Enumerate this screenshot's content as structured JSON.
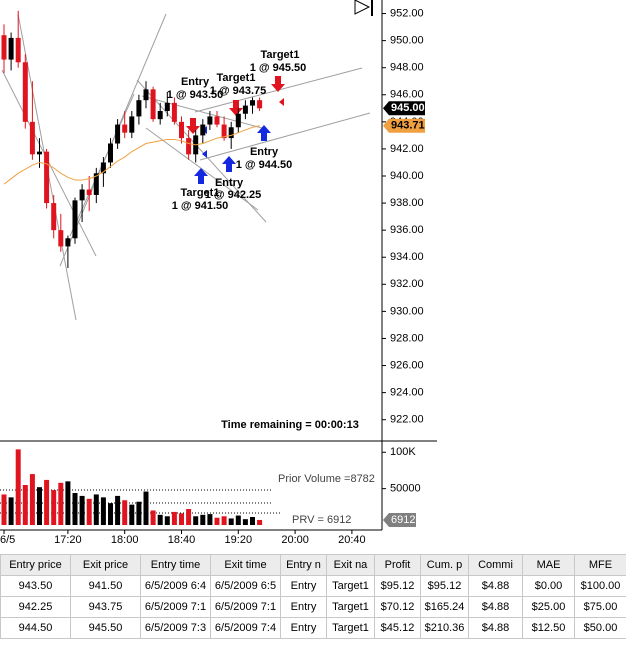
{
  "chart_data": {
    "type": "candlestick",
    "categories": [
      "6/5",
      null,
      null,
      null,
      null,
      null,
      null,
      null,
      null,
      "17:20",
      null,
      null,
      null,
      null,
      null,
      null,
      null,
      "18:00",
      null,
      null,
      null,
      null,
      null,
      null,
      null,
      "18:40",
      null,
      null,
      null,
      null,
      null,
      null,
      null,
      "19:20",
      null,
      null,
      null,
      null,
      null,
      null,
      null,
      "20:00",
      null,
      null,
      null,
      null,
      null,
      null,
      null,
      "20:40"
    ],
    "open": [
      950.4,
      948.6,
      950.2,
      948.4,
      944.0,
      941.6,
      941.8,
      938.0,
      936.0,
      934.8,
      935.4,
      938.2,
      939.0,
      938.6,
      940.2,
      941.0,
      942.4,
      943.8,
      943.2,
      944.4,
      945.6,
      946.4,
      944.2,
      944.8,
      945.4,
      944.0,
      942.8,
      941.6,
      943.0,
      943.8,
      944.4,
      943.8,
      942.8,
      943.6,
      944.6,
      945.2,
      945.6,
      null,
      null,
      null,
      null,
      null,
      null,
      null,
      null,
      null,
      null,
      null,
      null,
      null
    ],
    "high": [
      951.2,
      950.6,
      952.2,
      949.0,
      947.0,
      942.8,
      942.0,
      938.6,
      937.2,
      935.6,
      938.4,
      939.4,
      940.0,
      940.6,
      941.4,
      942.8,
      944.2,
      944.8,
      944.8,
      946.0,
      947.0,
      946.6,
      945.4,
      946.2,
      945.8,
      944.4,
      943.4,
      943.4,
      944.2,
      944.8,
      944.8,
      944.4,
      944.0,
      945.0,
      945.6,
      945.8,
      945.8,
      null,
      null,
      null,
      null,
      null,
      null,
      null,
      null,
      null,
      null,
      null,
      null,
      null
    ],
    "low": [
      947.6,
      947.8,
      948.0,
      943.5,
      941.2,
      940.6,
      937.6,
      935.4,
      934.4,
      933.2,
      935.0,
      936.6,
      937.4,
      938.0,
      939.2,
      940.6,
      942.0,
      942.8,
      942.8,
      943.8,
      945.0,
      944.0,
      943.8,
      944.4,
      943.8,
      942.4,
      941.2,
      941.0,
      942.4,
      943.4,
      943.6,
      942.6,
      942.0,
      943.2,
      944.2,
      944.6,
      944.8,
      null,
      null,
      null,
      null,
      null,
      null,
      null,
      null,
      null,
      null,
      null,
      null,
      null
    ],
    "close": [
      948.6,
      950.2,
      948.4,
      944.0,
      941.6,
      941.8,
      938.0,
      936.0,
      934.8,
      935.4,
      938.2,
      939.0,
      938.6,
      940.2,
      941.0,
      942.4,
      943.8,
      943.2,
      944.4,
      945.6,
      946.4,
      944.2,
      944.8,
      945.4,
      944.0,
      942.8,
      941.6,
      943.0,
      943.8,
      944.4,
      943.8,
      942.8,
      943.6,
      944.6,
      945.2,
      945.6,
      945.0,
      null,
      null,
      null,
      null,
      null,
      null,
      null,
      null,
      null,
      null,
      null,
      null,
      null
    ],
    "ma": [
      939.4,
      939.8,
      940.2,
      940.5,
      940.8,
      941.0,
      940.9,
      940.6,
      940.2,
      939.9,
      939.7,
      939.7,
      939.8,
      940.0,
      940.3,
      940.7,
      941.1,
      941.4,
      941.8,
      942.1,
      942.4,
      942.5,
      942.6,
      942.7,
      942.7,
      942.6,
      942.4,
      942.3,
      942.4,
      942.6,
      942.8,
      942.9,
      943.0,
      943.2,
      943.4,
      943.6,
      943.71,
      null,
      null,
      null,
      null,
      null,
      null,
      null,
      null,
      null,
      null,
      null,
      null,
      null
    ],
    "volume": [
      42000,
      38000,
      104000,
      55000,
      70000,
      52000,
      62000,
      48000,
      58000,
      60000,
      44000,
      40000,
      36000,
      42000,
      38000,
      30000,
      40000,
      34000,
      28000,
      32000,
      46000,
      20000,
      14000,
      12000,
      18000,
      16000,
      22000,
      12000,
      14000,
      15000,
      10000,
      12000,
      9000,
      13000,
      8000,
      11000,
      6912,
      null,
      null,
      null,
      null,
      null,
      null,
      null,
      null,
      null,
      null,
      null,
      null,
      null
    ],
    "up_color": "#000000",
    "down_color": "#e0141e",
    "ma_color": "#f0a040",
    "ylim": [
      920.5,
      953.0
    ],
    "yticks": [
      {
        "value": 952,
        "label": "952.00"
      },
      {
        "value": 950,
        "label": "950.00"
      },
      {
        "value": 948,
        "label": "948.00"
      },
      {
        "value": 946,
        "label": "946.00"
      },
      {
        "value": 944,
        "label": "944.00"
      },
      {
        "value": 942,
        "label": "942.00"
      },
      {
        "value": 940,
        "label": "940.00"
      },
      {
        "value": 938,
        "label": "938.00"
      },
      {
        "value": 936,
        "label": "936.00"
      },
      {
        "value": 934,
        "label": "934.00"
      },
      {
        "value": 932,
        "label": "932.00"
      },
      {
        "value": 930,
        "label": "930.00"
      },
      {
        "value": 928,
        "label": "928.00"
      },
      {
        "value": 926,
        "label": "926.00"
      },
      {
        "value": 924,
        "label": "924.00"
      },
      {
        "value": 922,
        "label": "922.00"
      }
    ],
    "volume_ylim": [
      0,
      110000
    ],
    "volume_yticks": [
      {
        "value": 100000,
        "label": "100K"
      },
      50000
    ],
    "price_markers": [
      {
        "value": 945.0,
        "label": "945.00",
        "color": "#000000"
      },
      {
        "value": 943.71,
        "label": "943.71",
        "color": "#f0a040"
      }
    ],
    "volume_marker": {
      "value": 6912,
      "label": "6912",
      "color": "#808080"
    },
    "annotations": [
      "Target1",
      "1 @ 945.50",
      "Entry",
      "1 @ 943.50",
      "Target1",
      "1 @ 943.75",
      "Entry",
      "1 @ 944.50",
      "Entry",
      "1 @ 942.25",
      "Target1",
      "1 @ 941.50"
    ],
    "time_remaining": "Time remaining = 00:00:13",
    "prior_volume": "Prior Volume =8782",
    "prv": "PRV = 6912"
  },
  "table": {
    "headers": [
      "Entry price",
      "Exit price",
      "Entry time",
      "Exit time",
      "Entry n",
      "Exit na",
      "Profit",
      "Cum. p",
      "Commi",
      "MAE",
      "MFE"
    ],
    "rows": [
      [
        "943.50",
        "941.50",
        "6/5/2009 6:4",
        "6/5/2009 6:5",
        "Entry",
        "Target1",
        "$95.12",
        "$95.12",
        "$4.88",
        "$0.00",
        "$100.00"
      ],
      [
        "942.25",
        "943.75",
        "6/5/2009 7:1",
        "6/5/2009 7:1",
        "Entry",
        "Target1",
        "$70.12",
        "$165.24",
        "$4.88",
        "$25.00",
        "$75.00"
      ],
      [
        "944.50",
        "945.50",
        "6/5/2009 7:3",
        "6/5/2009 7:4",
        "Entry",
        "Target1",
        "$45.12",
        "$210.36",
        "$4.88",
        "$12.50",
        "$50.00"
      ]
    ]
  }
}
